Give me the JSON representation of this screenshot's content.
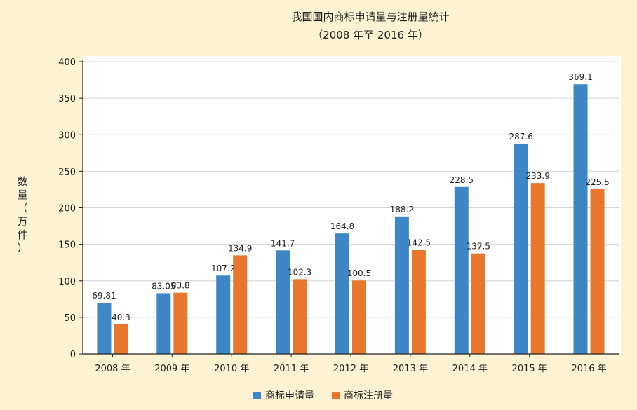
{
  "colors": {
    "background": "#fdf3d3",
    "plot_background": "#ffffff",
    "application": "#3d87c6",
    "registration": "#e8762d",
    "grid": "#d4d4d4",
    "axis": "#222222"
  },
  "chart_data": {
    "type": "bar",
    "title": "我国国内商标申请量与注册量统计",
    "subtitle": "（2008 年至 2016 年）",
    "xlabel": "",
    "ylabel": "数量（万件）",
    "ylabel_chars": [
      "数",
      "量",
      "（",
      "万",
      "件",
      "）"
    ],
    "ylim": [
      0,
      400
    ],
    "yticks": [
      0,
      50,
      100,
      150,
      200,
      250,
      300,
      350,
      400
    ],
    "grid": true,
    "legend_position": "bottom",
    "categories": [
      "2008 年",
      "2009 年",
      "2010 年",
      "2011 年",
      "2012 年",
      "2013 年",
      "2014 年",
      "2015 年",
      "2016 年"
    ],
    "series": [
      {
        "name": "商标申请量",
        "color": "#3d87c6",
        "values": [
          69.81,
          83.05,
          107.2,
          141.7,
          164.8,
          188.2,
          228.5,
          287.6,
          369.1
        ],
        "labels": [
          "69.81",
          "83.05",
          "107.2",
          "141.7",
          "164.8",
          "188.2",
          "228.5",
          "287.6",
          "369.1"
        ]
      },
      {
        "name": "商标注册量",
        "color": "#e8762d",
        "values": [
          40.3,
          83.8,
          134.9,
          102.3,
          100.5,
          142.5,
          137.5,
          233.9,
          225.5
        ],
        "labels": [
          "40.3",
          "83.8",
          "134.9",
          "102.3",
          "100.5",
          "142.5",
          "137.5",
          "233.9",
          "225.5"
        ]
      }
    ]
  }
}
